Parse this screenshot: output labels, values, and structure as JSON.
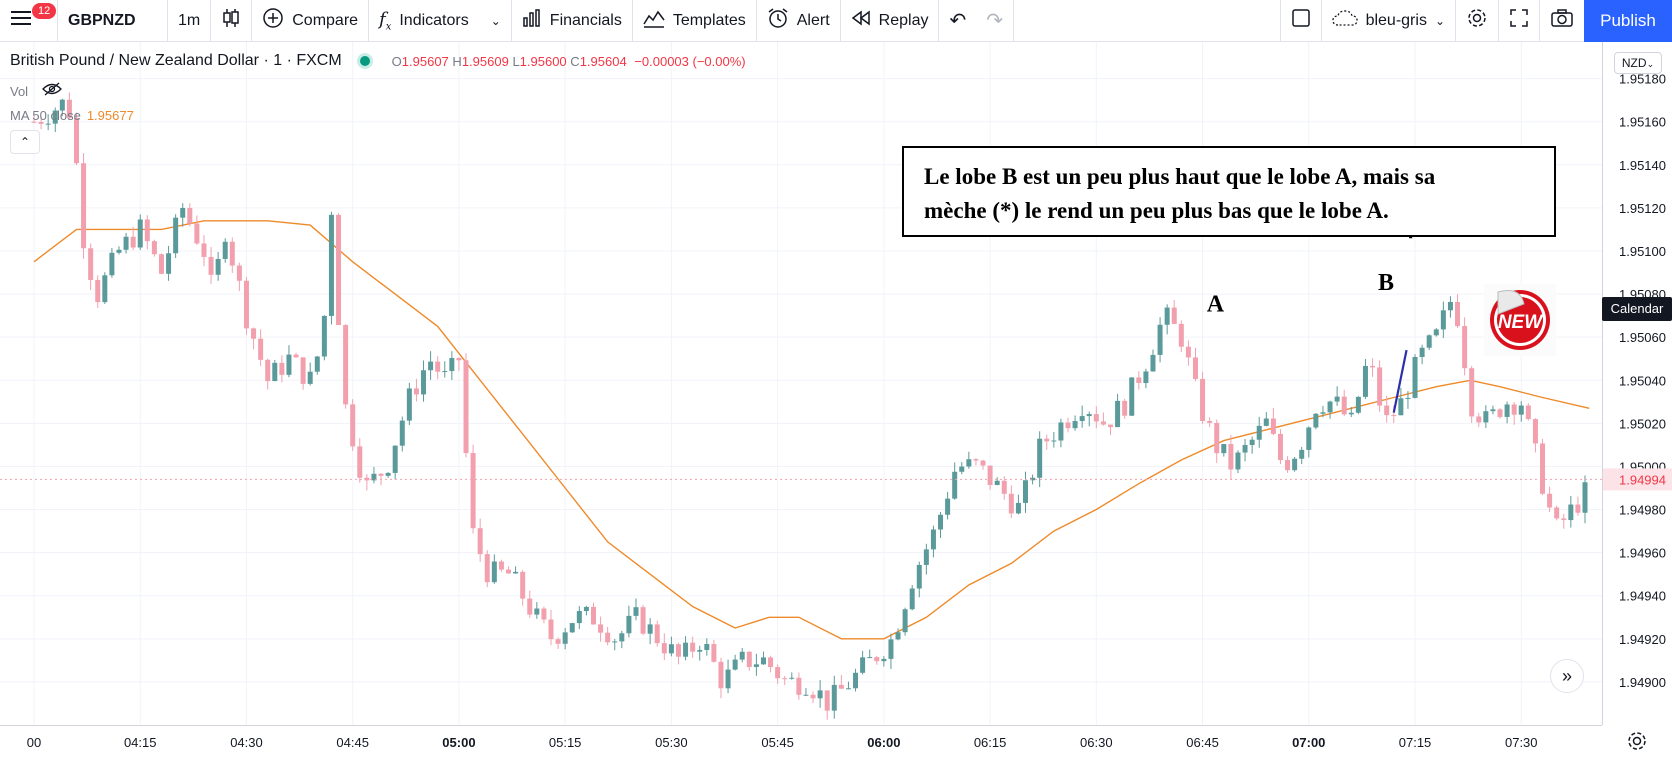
{
  "toolbar": {
    "menu_badge": "12",
    "symbol": "GBPNZD",
    "interval": "1m",
    "compare": "Compare",
    "indicators": "Indicators",
    "financials": "Financials",
    "templates": "Templates",
    "alert": "Alert",
    "replay": "Replay",
    "layout_name": "bleu-gris",
    "publish": "Publish"
  },
  "legend": {
    "title": "British Pound / New Zealand Dollar · 1 · FXCM",
    "o_label": "O",
    "o_value": "1.95607",
    "h_label": "H",
    "h_value": "1.95609",
    "l_label": "L",
    "l_value": "1.95600",
    "c_label": "C",
    "c_value": "1.95604",
    "change": "−0.00003 (−0.00%)",
    "vol_label": "Vol",
    "ma_label": "MA 50 close",
    "ma_value": "1.95677"
  },
  "annotation": {
    "line1": "Le lobe B est un peu plus haut que le lobe A, mais sa",
    "line2": "mèche (*) le rend un peu  plus bas que le lobe A.",
    "label_a": "A",
    "label_b": "B",
    "label_star": "*",
    "sticker_text": "NEW"
  },
  "price_axis": {
    "currency": "NZD",
    "current_price": "1.94994",
    "calendar_tip": "Calendar"
  },
  "colors": {
    "up": "#5b9a9a",
    "down": "#f2a0ae",
    "ma": "#ef8a2a",
    "grid": "#f0f3fa",
    "accent": "#2962ff",
    "trend_line": "#2b2fa8"
  },
  "chart_data": {
    "type": "candlestick",
    "title": "British Pound / New Zealand Dollar · 1 · FXCM",
    "ylim": [
      1.9488,
      1.95197
    ],
    "y_ticks": [
      1.949,
      1.9492,
      1.9494,
      1.9496,
      1.9498,
      1.95,
      1.9502,
      1.9504,
      1.9506,
      1.9508,
      1.951,
      1.9512,
      1.9514,
      1.9516,
      1.9518
    ],
    "x_ticks": [
      {
        "t": 4.0,
        "label": "00",
        "bold": false
      },
      {
        "t": 4.25,
        "label": "04:15",
        "bold": false
      },
      {
        "t": 4.5,
        "label": "04:30",
        "bold": false
      },
      {
        "t": 4.75,
        "label": "04:45",
        "bold": false
      },
      {
        "t": 5.0,
        "label": "05:00",
        "bold": true
      },
      {
        "t": 5.25,
        "label": "05:15",
        "bold": false
      },
      {
        "t": 5.5,
        "label": "05:30",
        "bold": false
      },
      {
        "t": 5.75,
        "label": "05:45",
        "bold": false
      },
      {
        "t": 6.0,
        "label": "06:00",
        "bold": true
      },
      {
        "t": 6.25,
        "label": "06:15",
        "bold": false
      },
      {
        "t": 6.5,
        "label": "06:30",
        "bold": false
      },
      {
        "t": 6.75,
        "label": "06:45",
        "bold": false
      },
      {
        "t": 7.0,
        "label": "07:00",
        "bold": true
      },
      {
        "t": 7.25,
        "label": "07:15",
        "bold": false
      },
      {
        "t": 7.5,
        "label": "07:30",
        "bold": false
      }
    ],
    "close_path": [
      [
        4.0,
        1.9516
      ],
      [
        4.08,
        1.9517
      ],
      [
        4.1,
        1.9514
      ],
      [
        4.12,
        1.951
      ],
      [
        4.15,
        1.9508
      ],
      [
        4.2,
        1.951
      ],
      [
        4.25,
        1.9511
      ],
      [
        4.3,
        1.9509
      ],
      [
        4.35,
        1.9512
      ],
      [
        4.4,
        1.951
      ],
      [
        4.42,
        1.9508
      ],
      [
        4.45,
        1.9511
      ],
      [
        4.5,
        1.9507
      ],
      [
        4.55,
        1.9504
      ],
      [
        4.6,
        1.9505
      ],
      [
        4.65,
        1.9504
      ],
      [
        4.68,
        1.9506
      ],
      [
        4.7,
        1.9512
      ],
      [
        4.73,
        1.9503
      ],
      [
        4.78,
        1.9499
      ],
      [
        4.83,
        1.95
      ],
      [
        4.88,
        1.9503
      ],
      [
        4.93,
        1.9505
      ],
      [
        4.97,
        1.9504
      ],
      [
        5.0,
        1.9505
      ],
      [
        5.03,
        1.9497
      ],
      [
        5.07,
        1.9495
      ],
      [
        5.12,
        1.9495
      ],
      [
        5.18,
        1.9493
      ],
      [
        5.22,
        1.9492
      ],
      [
        5.27,
        1.9493
      ],
      [
        5.32,
        1.9493
      ],
      [
        5.37,
        1.9492
      ],
      [
        5.42,
        1.9493
      ],
      [
        5.47,
        1.9492
      ],
      [
        5.52,
        1.9491
      ],
      [
        5.57,
        1.9492
      ],
      [
        5.62,
        1.949
      ],
      [
        5.67,
        1.9491
      ],
      [
        5.72,
        1.9491
      ],
      [
        5.77,
        1.949
      ],
      [
        5.82,
        1.949
      ],
      [
        5.87,
        1.9489
      ],
      [
        5.92,
        1.949
      ],
      [
        5.97,
        1.9491
      ],
      [
        6.02,
        1.9492
      ],
      [
        6.07,
        1.9495
      ],
      [
        6.12,
        1.9497
      ],
      [
        6.17,
        1.95
      ],
      [
        6.22,
        1.95
      ],
      [
        6.27,
        1.9499
      ],
      [
        6.32,
        1.9498
      ],
      [
        6.37,
        1.9501
      ],
      [
        6.42,
        1.9502
      ],
      [
        6.47,
        1.9503
      ],
      [
        6.52,
        1.9502
      ],
      [
        6.57,
        1.9503
      ],
      [
        6.62,
        1.9505
      ],
      [
        6.66,
        1.9507
      ],
      [
        6.7,
        1.9506
      ],
      [
        6.74,
        1.9503
      ],
      [
        6.78,
        1.9501
      ],
      [
        6.82,
        1.95
      ],
      [
        6.86,
        1.9501
      ],
      [
        6.9,
        1.9502
      ],
      [
        6.94,
        1.95
      ],
      [
        6.98,
        1.9501
      ],
      [
        7.02,
        1.9503
      ],
      [
        7.06,
        1.9503
      ],
      [
        7.1,
        1.9502
      ],
      [
        7.14,
        1.9505
      ],
      [
        7.18,
        1.9502
      ],
      [
        7.22,
        1.9503
      ],
      [
        7.26,
        1.9505
      ],
      [
        7.3,
        1.9506
      ],
      [
        7.34,
        1.9508
      ],
      [
        7.36,
        1.9506
      ],
      [
        7.38,
        1.9503
      ],
      [
        7.42,
        1.9502
      ],
      [
        7.46,
        1.9503
      ],
      [
        7.5,
        1.9503
      ],
      [
        7.54,
        1.95
      ],
      [
        7.58,
        1.9497
      ],
      [
        7.62,
        1.9498
      ],
      [
        7.66,
        1.9499
      ]
    ],
    "ma_path": [
      [
        4.0,
        1.95095
      ],
      [
        4.1,
        1.9511
      ],
      [
        4.3,
        1.9511
      ],
      [
        4.4,
        1.95114
      ],
      [
        4.55,
        1.95114
      ],
      [
        4.65,
        1.95112
      ],
      [
        4.75,
        1.95095
      ],
      [
        4.85,
        1.9508
      ],
      [
        4.95,
        1.95065
      ],
      [
        5.05,
        1.9504
      ],
      [
        5.15,
        1.95015
      ],
      [
        5.25,
        1.9499
      ],
      [
        5.35,
        1.94965
      ],
      [
        5.45,
        1.9495
      ],
      [
        5.55,
        1.94935
      ],
      [
        5.65,
        1.94925
      ],
      [
        5.73,
        1.9493
      ],
      [
        5.8,
        1.9493
      ],
      [
        5.9,
        1.9492
      ],
      [
        6.0,
        1.9492
      ],
      [
        6.1,
        1.9493
      ],
      [
        6.2,
        1.94945
      ],
      [
        6.3,
        1.94955
      ],
      [
        6.4,
        1.9497
      ],
      [
        6.5,
        1.9498
      ],
      [
        6.6,
        1.94992
      ],
      [
        6.7,
        1.95003
      ],
      [
        6.8,
        1.95012
      ],
      [
        6.9,
        1.95017
      ],
      [
        7.0,
        1.95022
      ],
      [
        7.1,
        1.95027
      ],
      [
        7.2,
        1.95032
      ],
      [
        7.3,
        1.95037
      ],
      [
        7.38,
        1.9504
      ],
      [
        7.45,
        1.95037
      ],
      [
        7.55,
        1.95032
      ],
      [
        7.66,
        1.95027
      ]
    ]
  }
}
